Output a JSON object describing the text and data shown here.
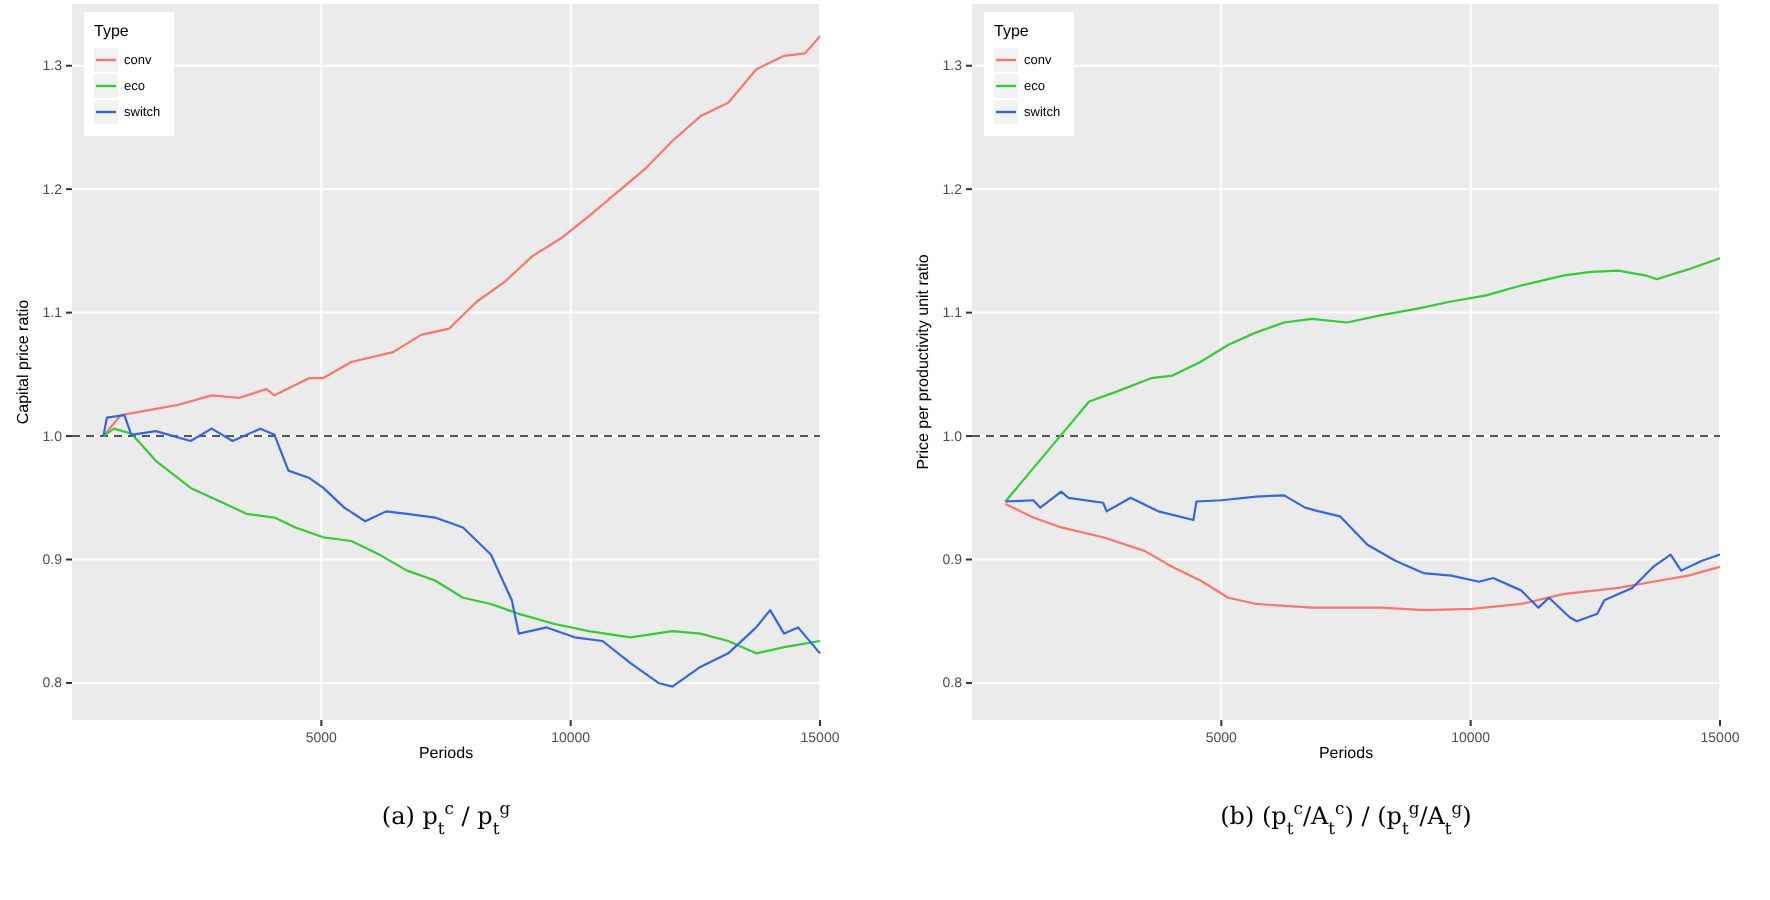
{
  "chart_data": [
    {
      "type": "line",
      "xlabel": "Periods",
      "ylabel": "Capital price ratio",
      "legend_title": "Type",
      "legend": "top left",
      "grid": true,
      "xlim": [
        0,
        15000
      ],
      "ylim": [
        0.77,
        1.35
      ],
      "xticks": [
        5000,
        10000,
        15000
      ],
      "yticks": [
        0.8,
        0.9,
        {
          "value": 1,
          "label": "1.0"
        },
        1.1,
        1.2,
        1.3
      ],
      "ref_lines": [
        {
          "axis": "y",
          "value": 1.0,
          "line_style": "dashed",
          "color": "#555555"
        }
      ],
      "annotations": [
        "(a) p$_{t}$$^{c}$ / p$_{t}$$^{g}$"
      ],
      "series": [
        {
          "name": "conv",
          "color": "#f8766d",
          "x": [
            630,
            980,
            2100,
            2800,
            3360,
            3900,
            4060,
            4760,
            5040,
            5600,
            6440,
            7000,
            7560,
            8120,
            8680,
            9240,
            9800,
            10360,
            10920,
            11480,
            12040,
            12600,
            13160,
            13720,
            14280,
            14700,
            15000
          ],
          "values": [
            1.0,
            1.017,
            1.025,
            1.033,
            1.031,
            1.038,
            1.033,
            1.047,
            1.047,
            1.06,
            1.068,
            1.082,
            1.087,
            1.109,
            1.125,
            1.146,
            1.16,
            1.178,
            1.197,
            1.216,
            1.239,
            1.259,
            1.27,
            1.297,
            1.308,
            1.31,
            1.324
          ]
        },
        {
          "name": "eco",
          "color": "#33cc33",
          "x": [
            630,
            840,
            1190,
            1680,
            2380,
            3080,
            3500,
            4060,
            4480,
            5040,
            5600,
            6160,
            6720,
            7280,
            7840,
            8400,
            8960,
            9660,
            10360,
            11200,
            12040,
            12600,
            13160,
            13720,
            14280,
            15000
          ],
          "values": [
            1.0,
            1.006,
            1.002,
            0.98,
            0.958,
            0.945,
            0.937,
            0.934,
            0.926,
            0.918,
            0.915,
            0.904,
            0.891,
            0.883,
            0.869,
            0.864,
            0.856,
            0.848,
            0.842,
            0.837,
            0.842,
            0.84,
            0.834,
            0.824,
            0.829,
            0.834
          ]
        },
        {
          "name": "switch",
          "color": "#3366e6",
          "x": [
            630,
            700,
            1050,
            1190,
            1680,
            2380,
            2800,
            3220,
            3780,
            4060,
            4340,
            4760,
            5040,
            5460,
            5880,
            6300,
            6720,
            7280,
            7840,
            8400,
            8820,
            8960,
            9520,
            10080,
            10640,
            11200,
            11760,
            12040,
            12600,
            13160,
            13720,
            14000,
            14280,
            14560,
            15000
          ],
          "values": [
            1.0,
            1.015,
            1.017,
            1.001,
            1.004,
            0.996,
            1.006,
            0.996,
            1.006,
            1.001,
            0.972,
            0.966,
            0.958,
            0.942,
            0.931,
            0.939,
            0.937,
            0.934,
            0.926,
            0.904,
            0.867,
            0.84,
            0.845,
            0.837,
            0.834,
            0.816,
            0.8,
            0.797,
            0.813,
            0.824,
            0.845,
            0.859,
            0.84,
            0.845,
            0.824
          ]
        }
      ]
    },
    {
      "type": "line",
      "xlabel": "Periods",
      "ylabel": "Price per productivity unit ratio",
      "legend_title": "Type",
      "legend": "top left",
      "grid": true,
      "xlim": [
        0,
        15000
      ],
      "ylim": [
        0.77,
        1.35
      ],
      "xticks": [
        5000,
        10000,
        15000
      ],
      "yticks": [
        0.8,
        0.9,
        {
          "value": 1,
          "label": "1.0"
        },
        1.1,
        1.2,
        1.3
      ],
      "ref_lines": [
        {
          "axis": "y",
          "value": 1.0,
          "line_style": "dashed",
          "color": "#555555"
        }
      ],
      "annotations": [
        "(b) (p$_{t}$$^{c}$/A$_{t}$$^{c}$) / (p$_{t}$$^{g}$/A$_{t}$$^{g}$)"
      ],
      "series": [
        {
          "name": "conv",
          "color": "#f8766d",
          "x": [
            670,
            1230,
            1790,
            2630,
            3460,
            4020,
            4580,
            5140,
            5700,
            6820,
            8210,
            9050,
            10030,
            11010,
            11850,
            12960,
            13800,
            14360,
            15000
          ],
          "values": [
            0.945,
            0.934,
            0.926,
            0.918,
            0.907,
            0.894,
            0.883,
            0.869,
            0.864,
            0.861,
            0.861,
            0.859,
            0.86,
            0.864,
            0.872,
            0.877,
            0.883,
            0.887,
            0.894
          ]
        },
        {
          "name": "eco",
          "color": "#33cc33",
          "x": [
            670,
            1230,
            1790,
            2350,
            2900,
            3600,
            4020,
            4580,
            5140,
            5700,
            6260,
            6820,
            7520,
            8210,
            8910,
            9610,
            10310,
            11010,
            11850,
            12410,
            12960,
            13520,
            13730,
            14360,
            15000
          ],
          "values": [
            0.947,
            0.974,
            1.001,
            1.028,
            1.036,
            1.047,
            1.049,
            1.06,
            1.074,
            1.084,
            1.092,
            1.095,
            1.092,
            1.098,
            1.103,
            1.109,
            1.114,
            1.122,
            1.13,
            1.133,
            1.134,
            1.13,
            1.127,
            1.135,
            1.144
          ]
        },
        {
          "name": "switch",
          "color": "#3366e6",
          "x": [
            670,
            1230,
            1370,
            1790,
            1930,
            2630,
            2700,
            3180,
            3740,
            4440,
            4500,
            5000,
            5700,
            6260,
            6680,
            6960,
            7380,
            7930,
            8490,
            9050,
            9610,
            10170,
            10450,
            11010,
            11360,
            11570,
            11990,
            12130,
            12540,
            12680,
            13240,
            13660,
            14010,
            14220,
            14640,
            15000
          ],
          "values": [
            0.947,
            0.948,
            0.942,
            0.955,
            0.95,
            0.946,
            0.939,
            0.95,
            0.939,
            0.932,
            0.947,
            0.948,
            0.951,
            0.952,
            0.942,
            0.939,
            0.935,
            0.912,
            0.899,
            0.889,
            0.887,
            0.882,
            0.885,
            0.875,
            0.861,
            0.869,
            0.853,
            0.85,
            0.856,
            0.867,
            0.877,
            0.894,
            0.904,
            0.891,
            0.899,
            0.904
          ]
        }
      ]
    }
  ]
}
